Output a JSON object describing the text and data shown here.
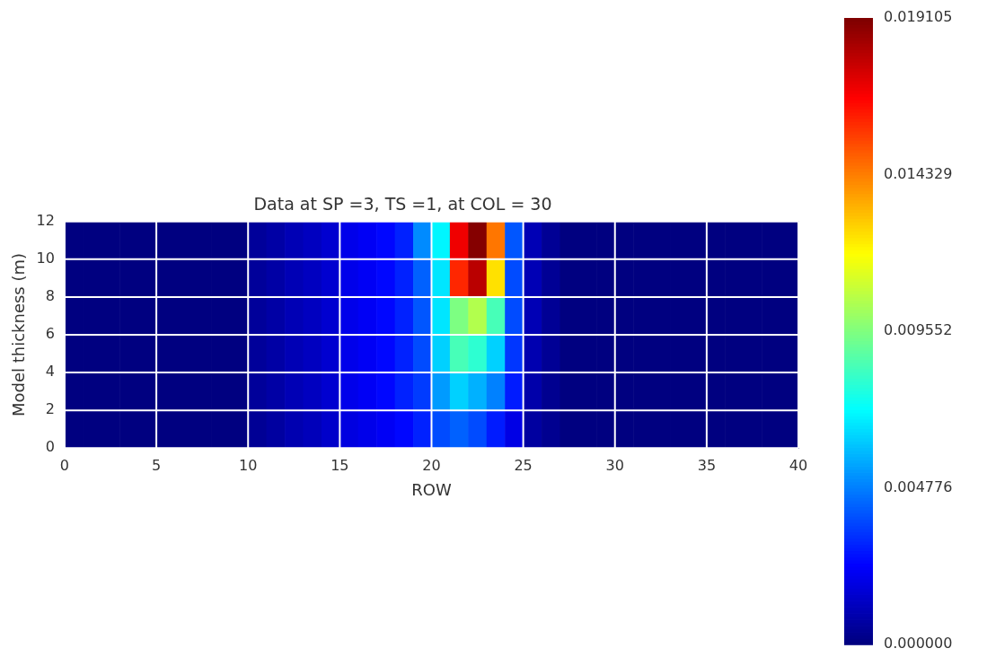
{
  "chart_data": {
    "type": "heatmap",
    "title": "Data at SP =3, TS =1, at COL = 30",
    "xlabel": "ROW",
    "ylabel": "Model thickness (m)",
    "cells": [
      [
        0,
        0,
        0,
        0,
        0,
        0,
        0,
        0,
        0,
        0,
        0.0005,
        0.0007,
        0.001,
        0.0012,
        0.0015,
        0.002,
        0.0022,
        0.0025,
        0.003,
        0.005,
        0.007,
        0.017,
        0.019,
        0.0145,
        0.004,
        0.001,
        0.0004,
        0,
        0,
        0,
        0,
        0,
        0,
        0,
        0,
        0,
        0,
        0,
        0,
        0
      ],
      [
        0,
        0,
        0,
        0,
        0,
        0,
        0,
        0,
        0,
        0,
        0.0005,
        0.0007,
        0.001,
        0.0012,
        0.0015,
        0.002,
        0.0022,
        0.0025,
        0.003,
        0.0042,
        0.0067,
        0.016,
        0.018,
        0.0125,
        0.0038,
        0.001,
        0.0004,
        0,
        0,
        0,
        0,
        0,
        0,
        0,
        0,
        0,
        0,
        0,
        0,
        0
      ],
      [
        0,
        0,
        0,
        0,
        0,
        0,
        0,
        0,
        0,
        0,
        0.0005,
        0.0007,
        0.001,
        0.0012,
        0.0015,
        0.002,
        0.0022,
        0.0025,
        0.003,
        0.004,
        0.0067,
        0.0095,
        0.0105,
        0.0085,
        0.0038,
        0.001,
        0.0004,
        0,
        0,
        0,
        0,
        0,
        0,
        0,
        0,
        0,
        0,
        0,
        0,
        0
      ],
      [
        0,
        0,
        0,
        0,
        0,
        0,
        0,
        0,
        0,
        0,
        0.0005,
        0.0007,
        0.001,
        0.0012,
        0.0015,
        0.002,
        0.0022,
        0.0025,
        0.003,
        0.0038,
        0.0063,
        0.0085,
        0.008,
        0.0063,
        0.0034,
        0.0009,
        0.0004,
        0,
        0,
        0,
        0,
        0,
        0,
        0,
        0,
        0,
        0,
        0,
        0,
        0
      ],
      [
        0,
        0,
        0,
        0,
        0,
        0,
        0,
        0,
        0,
        0,
        0.0005,
        0.0007,
        0.001,
        0.0012,
        0.0015,
        0.002,
        0.0022,
        0.0025,
        0.003,
        0.0035,
        0.0053,
        0.0063,
        0.0057,
        0.0048,
        0.0029,
        0.0008,
        0.0003,
        0,
        0,
        0,
        0,
        0,
        0,
        0,
        0,
        0,
        0,
        0,
        0,
        0
      ],
      [
        0,
        0,
        0,
        0,
        0,
        0,
        0,
        0,
        0,
        0,
        0.0004,
        0.0006,
        0.0009,
        0.0011,
        0.0014,
        0.0018,
        0.002,
        0.0022,
        0.0025,
        0.003,
        0.0038,
        0.0042,
        0.0038,
        0.0029,
        0.0019,
        0.0006,
        0.0003,
        0,
        0,
        0,
        0,
        0,
        0,
        0,
        0,
        0,
        0,
        0,
        0,
        0
      ]
    ],
    "xlim": [
      0,
      40
    ],
    "xticks": [
      0,
      5,
      10,
      15,
      20,
      25,
      30,
      35,
      40
    ],
    "ylim": [
      0,
      12
    ],
    "yticks": [
      0,
      2,
      4,
      6,
      8,
      10,
      12
    ],
    "clim": [
      0,
      0.019105
    ],
    "cticks": [
      {
        "value": 0,
        "label": "0.000000"
      },
      0.004776,
      0.009552,
      0.014329,
      0.019105
    ],
    "grid": true
  }
}
